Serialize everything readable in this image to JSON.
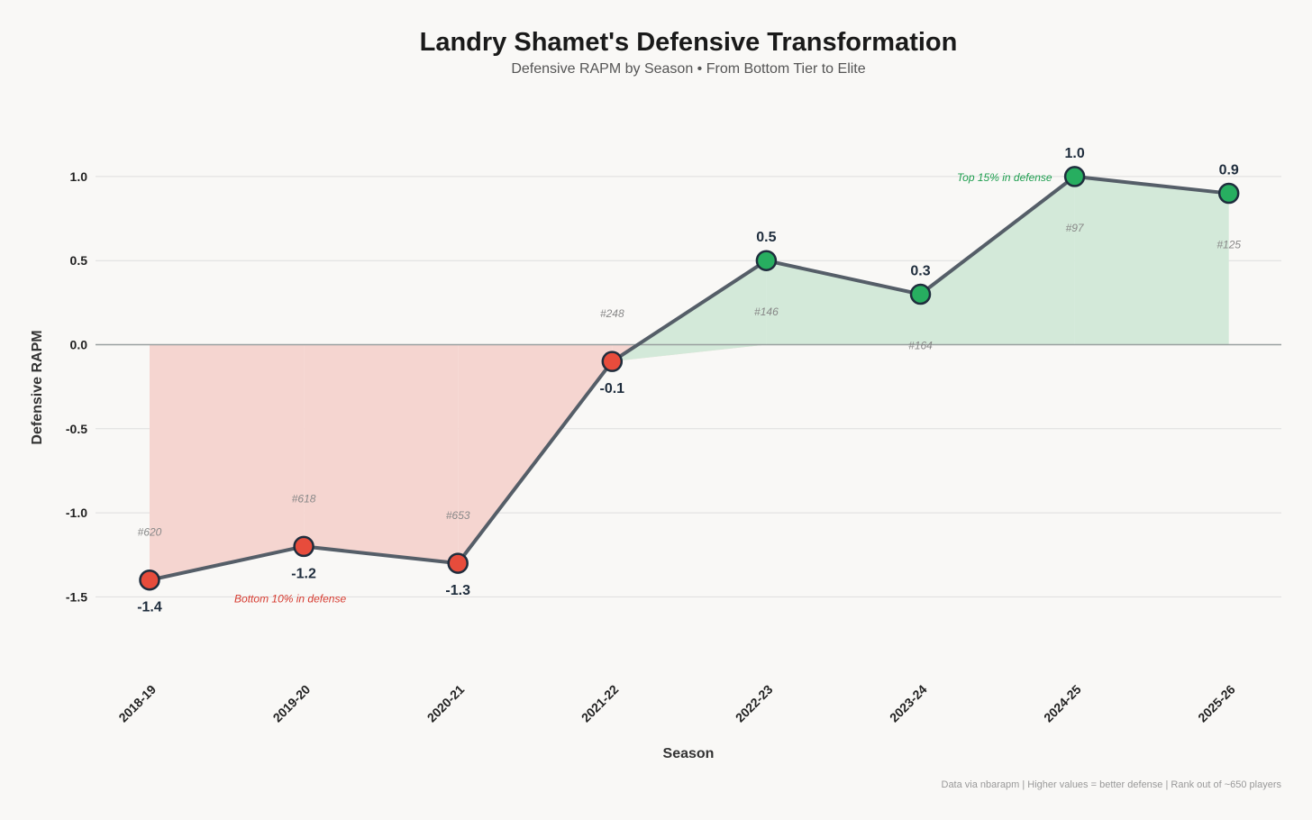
{
  "chart_data": {
    "type": "line",
    "title": "Landry Shamet's Defensive Transformation",
    "subtitle": "Defensive RAPM by Season • From Bottom Tier to Elite",
    "xlabel": "Season",
    "ylabel": "Defensive RAPM",
    "ylim": [
      -1.8,
      1.3
    ],
    "yticks": [
      1.0,
      0.5,
      0.0,
      -0.5,
      -1.0,
      -1.5
    ],
    "ytick_labels": [
      "1.0",
      "0.5",
      "0.0",
      "-0.5",
      "-1.0",
      "-1.5"
    ],
    "categories": [
      "2018-19",
      "2019-20",
      "2020-21",
      "2021-22",
      "2022-23",
      "2023-24",
      "2024-25",
      "2025-26"
    ],
    "values": [
      -1.4,
      -1.2,
      -1.3,
      -0.1,
      0.5,
      0.3,
      1.0,
      0.9
    ],
    "value_labels": [
      "-1.4",
      "-1.2",
      "-1.3",
      "-0.1",
      "0.5",
      "0.3",
      "1.0",
      "0.9"
    ],
    "ranks": [
      "#620",
      "#618",
      "#653",
      "#248",
      "#146",
      "#164",
      "#97",
      "#125"
    ],
    "annotations": {
      "bottom": "Bottom 10% in defense",
      "top": "Top 15% in defense"
    },
    "footer": "Data via nbarapm | Higher values = better defense | Rank out of ~650 players",
    "colors": {
      "negative_point": "#e74c3c",
      "positive_point": "#27ae60",
      "point_edge": "#1f2d3d",
      "line": "#555e68",
      "negative_fill": "#f5d5d0",
      "positive_fill": "#d3e9d9",
      "zero_line": "#9aa0a0",
      "grid": "#dedede"
    }
  }
}
